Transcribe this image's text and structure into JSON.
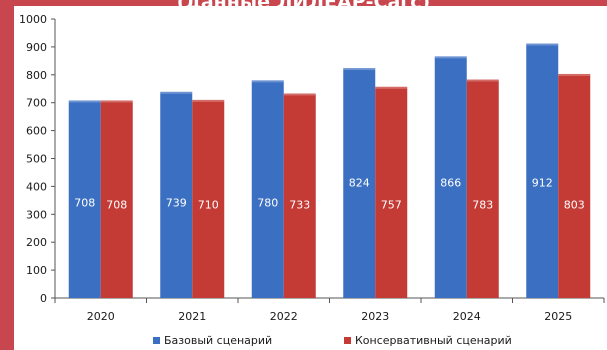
{
  "page": {
    "banner_text": "(данные ЛИЛЕАР-Сагс)"
  },
  "chart_data": {
    "type": "bar",
    "title": "",
    "xlabel": "",
    "ylabel": "",
    "categories": [
      "2020",
      "2021",
      "2022",
      "2023",
      "2024",
      "2025"
    ],
    "series": [
      {
        "name": "Базовый сценарий",
        "values": [
          708,
          739,
          780,
          824,
          866,
          912
        ],
        "color": "#3b6fc2"
      },
      {
        "name": "Консервативный сценарий",
        "values": [
          708,
          710,
          733,
          757,
          783,
          803
        ],
        "color": "#c43a35"
      }
    ],
    "ylim": [
      0,
      1000
    ],
    "yticks": [
      0,
      100,
      200,
      300,
      400,
      500,
      600,
      700,
      800,
      900,
      1000
    ],
    "grid": false,
    "legend": "bottom"
  }
}
